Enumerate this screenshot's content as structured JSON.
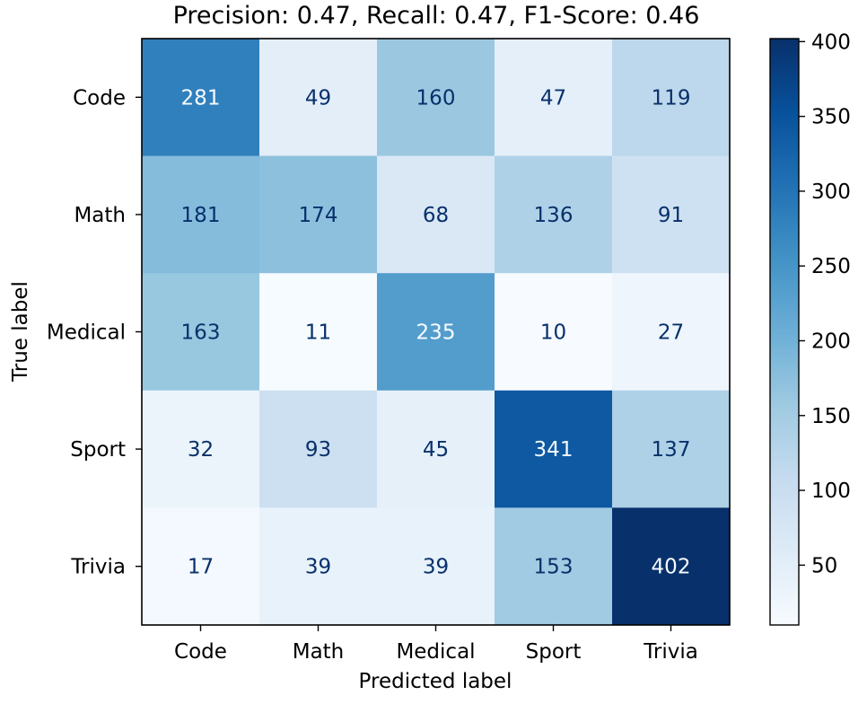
{
  "chart_data": {
    "type": "heatmap",
    "title": "Precision: 0.47, Recall: 0.47, F1-Score: 0.46",
    "xlabel": "Predicted label",
    "ylabel": "True label",
    "x_categories": [
      "Code",
      "Math",
      "Medical",
      "Sport",
      "Trivia"
    ],
    "y_categories": [
      "Code",
      "Math",
      "Medical",
      "Sport",
      "Trivia"
    ],
    "values": [
      [
        281,
        49,
        160,
        47,
        119
      ],
      [
        181,
        174,
        68,
        136,
        91
      ],
      [
        163,
        11,
        235,
        10,
        27
      ],
      [
        32,
        93,
        45,
        341,
        137
      ],
      [
        17,
        39,
        39,
        153,
        402
      ]
    ],
    "colormap": "Blues",
    "colorbar": {
      "range": [
        10,
        402
      ],
      "ticks": [
        50,
        100,
        150,
        200,
        250,
        300,
        350,
        400
      ]
    },
    "grid": false
  }
}
